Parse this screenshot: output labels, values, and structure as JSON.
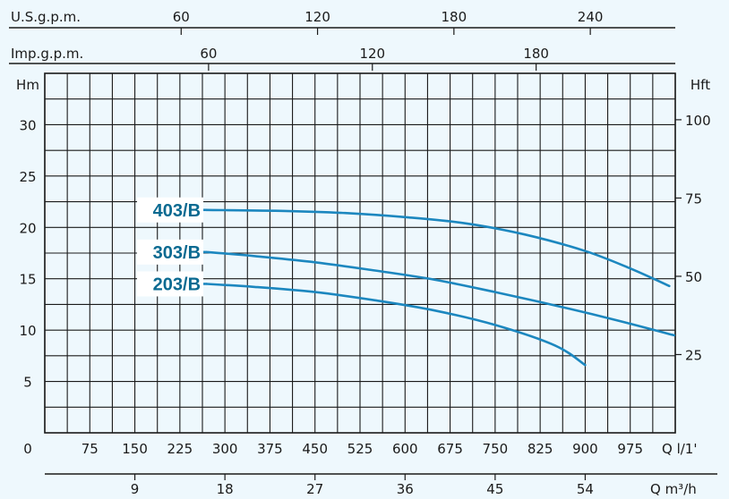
{
  "colors": {
    "background": "#eef8fd",
    "grid": "#1a1a1a",
    "curve": "#1c87bf",
    "label": "#0a6a91",
    "label_box": "#ffffff"
  },
  "chart_data": {
    "type": "line",
    "title": "",
    "x_unit_label": "Q l/1'",
    "x_unit2_label": "Q m³/h",
    "y_left_label": "Hm",
    "y_right_label": "Hft",
    "top_axis1_label": "U.S.g.p.m.",
    "top_axis2_label": "Imp.g.p.m.",
    "xlim": [
      0,
      1050
    ],
    "ylim": [
      0,
      35
    ],
    "x_ticks": [
      0,
      75,
      150,
      225,
      300,
      375,
      450,
      525,
      600,
      675,
      750,
      825,
      900,
      975
    ],
    "x_tick_labels": [
      "0",
      "75",
      "150",
      "225",
      "300",
      "375",
      "450",
      "525",
      "600",
      "675",
      "750",
      "825",
      "900",
      "975"
    ],
    "m3h_ticks": [
      9,
      18,
      27,
      36,
      45,
      54
    ],
    "m3h_tick_labels": [
      "9",
      "18",
      "27",
      "36",
      "45",
      "54"
    ],
    "usgpm_ticks": [
      60,
      120,
      180,
      240
    ],
    "usgpm_tick_labels": [
      "60",
      "120",
      "180",
      "240"
    ],
    "impgpm_ticks": [
      60,
      120,
      180
    ],
    "impgpm_tick_labels": [
      "60",
      "120",
      "180"
    ],
    "y_left_ticks": [
      5,
      10,
      15,
      20,
      25,
      30
    ],
    "y_left_tick_labels": [
      "5",
      "10",
      "15",
      "20",
      "25",
      "30"
    ],
    "y_right_ticks_ft": [
      25,
      50,
      75,
      100
    ],
    "y_right_tick_labels": [
      "25",
      "50",
      "75",
      "100"
    ],
    "series": [
      {
        "name": "403/B",
        "x": [
          270,
          400,
          500,
          600,
          700,
          800,
          900,
          975,
          1040
        ],
        "y": [
          21.7,
          21.6,
          21.4,
          21.0,
          20.4,
          19.3,
          17.7,
          16.0,
          14.3
        ]
      },
      {
        "name": "303/B",
        "x": [
          270,
          350,
          450,
          550,
          650,
          750,
          850,
          950,
          1048
        ],
        "y": [
          17.6,
          17.2,
          16.6,
          15.8,
          14.9,
          13.7,
          12.4,
          11.0,
          9.5
        ]
      },
      {
        "name": "203/B",
        "x": [
          270,
          350,
          450,
          550,
          650,
          750,
          850,
          900
        ],
        "y": [
          14.5,
          14.2,
          13.7,
          12.9,
          11.9,
          10.5,
          8.5,
          6.6
        ]
      }
    ]
  }
}
